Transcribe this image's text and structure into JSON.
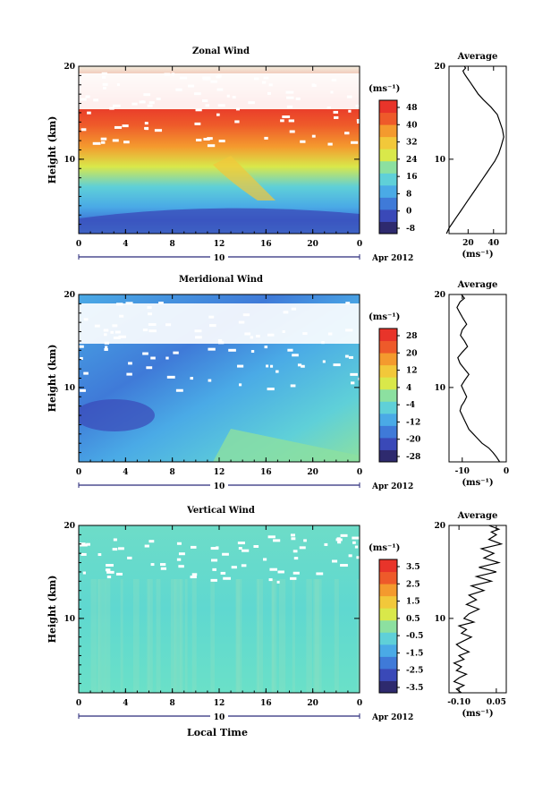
{
  "figure": {
    "month_label": "Apr 2012",
    "day_label": "10",
    "xlabel": "Local Time"
  },
  "colors": {
    "zonal_scale": [
      "#2e2a6e",
      "#3a49b8",
      "#3f7ad8",
      "#4aaae6",
      "#5fd0d8",
      "#8ce0a0",
      "#d9e84a",
      "#f2c83a",
      "#f49a2e",
      "#ee5a2a",
      "#e8342a"
    ],
    "meridional_scale": [
      "#2e2a6e",
      "#3a49b8",
      "#3f7ad8",
      "#4aaae6",
      "#5fd0d8",
      "#8ce0a0",
      "#d9e84a",
      "#f2c83a",
      "#f49a2e",
      "#ee5a2a",
      "#e8342a"
    ],
    "vertical_scale": [
      "#2e2a6e",
      "#3a49b8",
      "#3f7ad8",
      "#4aaae6",
      "#5fd0d8",
      "#8ce0a0",
      "#d9e84a",
      "#f2c83a",
      "#f49a2e",
      "#ee5a2a",
      "#e8342a"
    ]
  },
  "chart_data": [
    {
      "type": "heatmap",
      "id": "zonal",
      "title": "Zonal Wind",
      "ylabel": "Height (km)",
      "unit_label": "(ms⁻¹)",
      "xlim": [
        0,
        24
      ],
      "ylim": [
        2,
        20
      ],
      "x_ticks": [
        "0",
        "4",
        "8",
        "12",
        "16",
        "20",
        "0"
      ],
      "y_ticks": [
        "10",
        "20"
      ],
      "colorbar_ticks": [
        "48",
        "40",
        "32",
        "24",
        "16",
        "8",
        "0",
        "-8"
      ],
      "profile": {
        "title": "Average",
        "xlabel": "(ms⁻¹)",
        "xlim": [
          5,
          50
        ],
        "x_ticks": [
          "20",
          "40"
        ],
        "y_ticks": [
          "10",
          "20"
        ],
        "x": [
          3,
          5,
          8,
          11,
          14,
          17,
          20,
          23,
          26,
          29,
          32,
          35,
          38,
          41,
          44,
          46,
          48,
          47,
          45,
          43,
          38,
          32,
          28,
          25,
          22,
          19,
          17,
          16,
          18,
          17
        ],
        "y": [
          2,
          2.6,
          3.2,
          3.8,
          4.4,
          5,
          5.6,
          6.2,
          6.8,
          7.4,
          8,
          8.6,
          9.2,
          9.8,
          10.6,
          11.4,
          12.4,
          13.2,
          14,
          14.8,
          15.6,
          16.4,
          17,
          17.6,
          18.2,
          18.8,
          19.2,
          19.5,
          19.8,
          20
        ]
      }
    },
    {
      "type": "heatmap",
      "id": "meridional",
      "title": "Meridional Wind",
      "ylabel": "Height (km)",
      "unit_label": "(ms⁻¹)",
      "xlim": [
        0,
        24
      ],
      "ylim": [
        2,
        20
      ],
      "x_ticks": [
        "0",
        "4",
        "8",
        "12",
        "16",
        "20",
        "0"
      ],
      "y_ticks": [
        "10",
        "20"
      ],
      "colorbar_ticks": [
        "28",
        "20",
        "12",
        "4",
        "-4",
        "-12",
        "-20",
        "-28"
      ],
      "profile": {
        "title": "Average",
        "xlabel": "(ms⁻¹)",
        "xlim": [
          -13,
          0
        ],
        "x_ticks": [
          "-10",
          "0"
        ],
        "y_ticks": [
          "10",
          "20"
        ],
        "x": [
          -1.5,
          -2.2,
          -3,
          -4,
          -5.5,
          -6.5,
          -7.5,
          -8.5,
          -9,
          -9.5,
          -10,
          -10.5,
          -10.2,
          -9.5,
          -9,
          -9.6,
          -10.2,
          -9.4,
          -8.5,
          -9.5,
          -10.5,
          -11,
          -10,
          -8.8,
          -9.5,
          -10.4,
          -10,
          -9,
          -9.8,
          -10.5,
          -11.2,
          -10.5,
          -9.5,
          -10.2
        ],
        "y": [
          2,
          2.5,
          3,
          3.5,
          4,
          4.5,
          5,
          5.5,
          6,
          6.5,
          7,
          7.5,
          8,
          8.5,
          9,
          9.6,
          10.2,
          10.8,
          11.4,
          12,
          12.6,
          13.2,
          13.8,
          14.4,
          15,
          15.6,
          16.2,
          16.8,
          17.4,
          18,
          18.6,
          19.2,
          19.6,
          20
        ]
      }
    },
    {
      "type": "heatmap",
      "id": "vertical",
      "title": "Vertical Wind",
      "ylabel": "Height (km)",
      "unit_label": "(ms⁻¹)",
      "xlim": [
        0,
        24
      ],
      "ylim": [
        2,
        20
      ],
      "x_ticks": [
        "0",
        "4",
        "8",
        "12",
        "16",
        "20",
        "0"
      ],
      "y_ticks": [
        "10",
        "20"
      ],
      "colorbar_ticks": [
        "3.5",
        "2.5",
        "1.5",
        "0.5",
        "-0.5",
        "-1.5",
        "-2.5",
        "-3.5"
      ],
      "profile": {
        "title": "Average",
        "xlabel": "(ms⁻¹)",
        "xlim": [
          -0.14,
          0.09
        ],
        "x_ticks": [
          "-0.10",
          "0.05"
        ],
        "y_ticks": [
          "10",
          "20"
        ],
        "x": [
          -0.09,
          -0.11,
          -0.08,
          -0.12,
          -0.1,
          -0.07,
          -0.11,
          -0.09,
          -0.12,
          -0.08,
          -0.1,
          -0.06,
          -0.09,
          -0.11,
          -0.08,
          -0.05,
          -0.09,
          -0.07,
          -0.1,
          -0.04,
          -0.08,
          -0.06,
          -0.02,
          -0.07,
          -0.03,
          -0.06,
          0.0,
          -0.05,
          0.03,
          -0.03,
          0.05,
          -0.02,
          0.06,
          0.0,
          0.04,
          -0.01,
          0.07,
          0.02,
          0.05,
          0.03,
          0.06,
          0.02
        ],
        "y": [
          2,
          2.4,
          2.8,
          3.2,
          3.6,
          4,
          4.4,
          4.8,
          5.2,
          5.6,
          6,
          6.4,
          6.8,
          7.2,
          7.6,
          8,
          8.4,
          8.8,
          9.2,
          9.6,
          10,
          10.5,
          11,
          11.5,
          12,
          12.5,
          13,
          13.5,
          14,
          14.5,
          15,
          15.5,
          16,
          16.5,
          17,
          17.5,
          18,
          18.5,
          19,
          19.3,
          19.6,
          20
        ]
      }
    }
  ]
}
